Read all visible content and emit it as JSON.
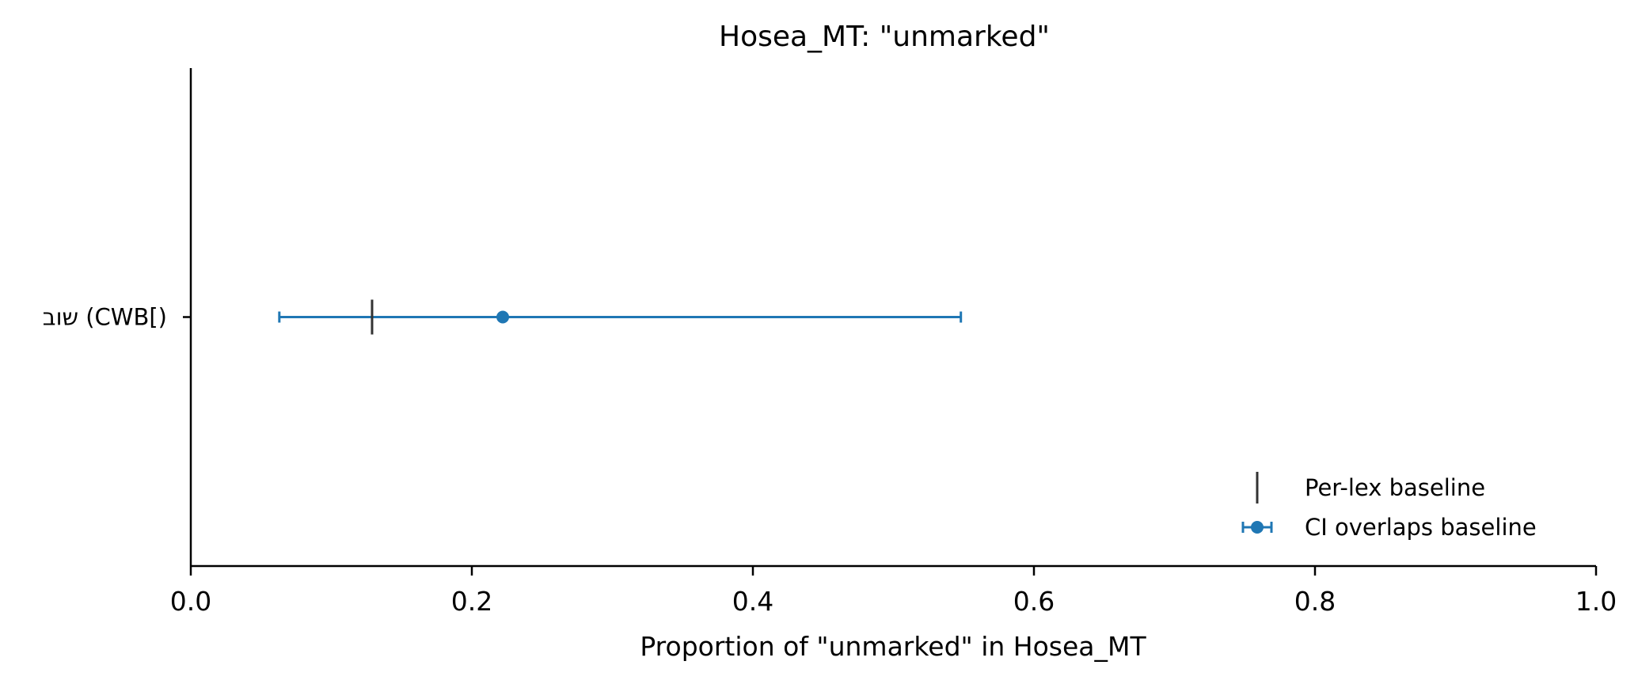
{
  "chart_data": {
    "type": "errorbar",
    "title": "Hosea_MT: \"unmarked\"",
    "xlabel": "Proportion of \"unmarked\" in Hosea_MT",
    "ylabel": "",
    "xlim": [
      0.0,
      1.0
    ],
    "xticks": [
      0.0,
      0.2,
      0.4,
      0.6,
      0.8,
      1.0
    ],
    "xtick_labels": [
      "0.0",
      "0.2",
      "0.4",
      "0.6",
      "0.8",
      "1.0"
    ],
    "categories": [
      "שוב (CWB[)"
    ],
    "points": [
      {
        "category": "שוב (CWB[)",
        "value": 0.222,
        "ci_low": 0.063,
        "ci_high": 0.548,
        "baseline": 0.129
      }
    ],
    "legend": {
      "placement": "lower-right",
      "entries": [
        {
          "label": "Per-lex baseline",
          "marker": "vertical-line",
          "color": "#333333"
        },
        {
          "label": "CI overlaps baseline",
          "marker": "errorbar-dot",
          "color": "#1f77b4"
        }
      ]
    },
    "colors": {
      "point": "#1f77b4",
      "baseline": "#333333",
      "axis": "#000000"
    },
    "grid": false
  }
}
